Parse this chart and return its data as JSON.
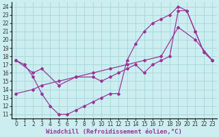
{
  "xlabel": "Windchill (Refroidissement éolien,°C)",
  "bg_color": "#cceef0",
  "grid_color": "#aad8dc",
  "line_color": "#993399",
  "xlim_min": -0.5,
  "xlim_max": 23.5,
  "ylim_min": 10.5,
  "ylim_max": 24.5,
  "xticks": [
    0,
    1,
    2,
    3,
    4,
    5,
    6,
    7,
    8,
    9,
    10,
    11,
    12,
    13,
    14,
    15,
    16,
    17,
    18,
    19,
    20,
    21,
    22,
    23
  ],
  "yticks": [
    11,
    12,
    13,
    14,
    15,
    16,
    17,
    18,
    19,
    20,
    21,
    22,
    23,
    24
  ],
  "line1_x": [
    0,
    1,
    2,
    3,
    4,
    5,
    6,
    7,
    8,
    9,
    10,
    11,
    12,
    13,
    14,
    15,
    16,
    17,
    18,
    19,
    20,
    21,
    22,
    23
  ],
  "line1_y": [
    17.5,
    17.0,
    15.5,
    13.5,
    12.0,
    11.0,
    11.0,
    11.5,
    12.0,
    12.5,
    13.0,
    13.5,
    13.5,
    17.5,
    19.5,
    21.0,
    22.0,
    22.5,
    23.0,
    24.0,
    23.5,
    21.0,
    18.5,
    17.5
  ],
  "line2_x": [
    0,
    2,
    3,
    5,
    7,
    9,
    10,
    11,
    12,
    13,
    14,
    15,
    16,
    17,
    18,
    19,
    20,
    21,
    22,
    23
  ],
  "line2_y": [
    17.5,
    16.0,
    16.5,
    14.5,
    15.5,
    15.5,
    15.0,
    15.5,
    16.0,
    16.5,
    17.0,
    16.0,
    17.0,
    17.5,
    18.0,
    23.5,
    23.5,
    21.0,
    18.5,
    17.5
  ],
  "line3_x": [
    0,
    2,
    3,
    5,
    7,
    9,
    11,
    13,
    15,
    17,
    19,
    21,
    23
  ],
  "line3_y": [
    13.5,
    14.0,
    14.5,
    15.0,
    15.5,
    16.0,
    16.5,
    17.0,
    17.5,
    18.0,
    21.5,
    20.0,
    17.5
  ],
  "tick_fontsize": 5.5,
  "xlabel_fontsize": 6.5
}
